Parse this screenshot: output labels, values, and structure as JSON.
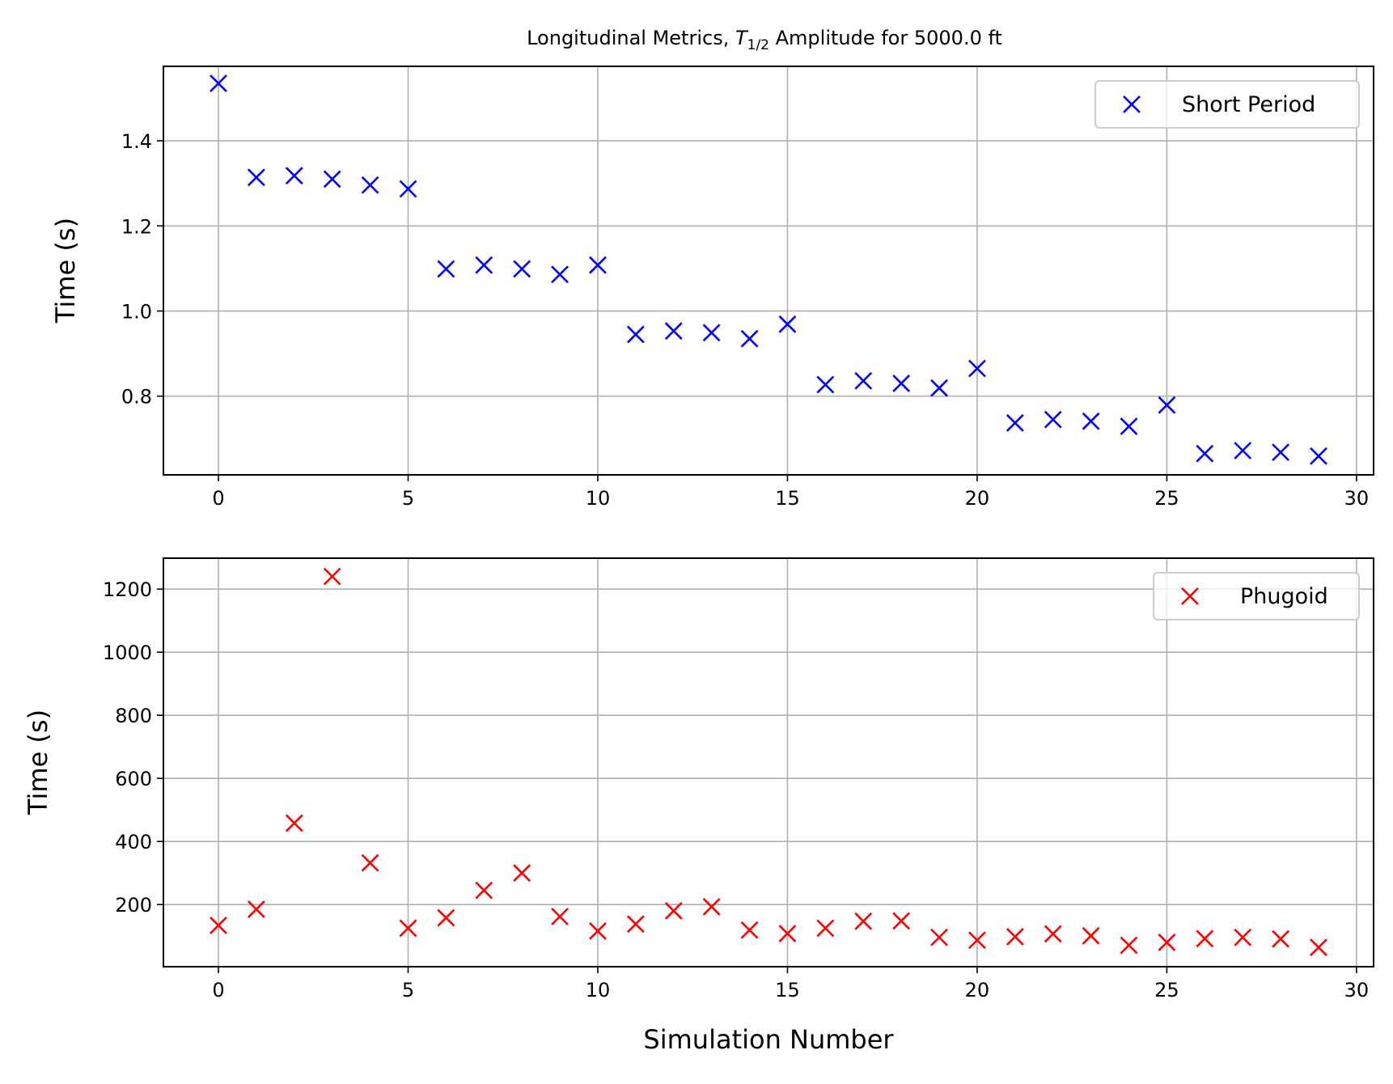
{
  "chart_data": [
    {
      "type": "scatter",
      "title_main": "Longitudinal Metrics, ",
      "title_symbol": "T",
      "title_subscript": "1/2",
      "title_rest": " Amplitude for 5000.0 ft",
      "xlabel": "",
      "ylabel": "Time (s)",
      "xlim": [
        -1.45,
        30.45
      ],
      "ylim": [
        0.615,
        1.575
      ],
      "xticks": [
        0,
        5,
        10,
        15,
        20,
        25,
        30
      ],
      "xtick_labels": [
        "0",
        "5",
        "10",
        "15",
        "20",
        "25",
        "30"
      ],
      "yticks": [
        0.8,
        1.0,
        1.2,
        1.4
      ],
      "ytick_labels": [
        "0.8",
        "1.0",
        "1.2",
        "1.4"
      ],
      "grid": true,
      "legend_position": "upper right",
      "series": [
        {
          "name": "Short Period",
          "marker": "x",
          "color": "#0000ff",
          "x": [
            0,
            1,
            2,
            3,
            4,
            5,
            6,
            7,
            8,
            9,
            10,
            11,
            12,
            13,
            14,
            15,
            16,
            17,
            18,
            19,
            20,
            21,
            22,
            23,
            24,
            25,
            26,
            27,
            28,
            29
          ],
          "y": [
            1.535,
            1.314,
            1.318,
            1.31,
            1.296,
            1.287,
            1.099,
            1.108,
            1.099,
            1.086,
            1.108,
            0.945,
            0.953,
            0.949,
            0.935,
            0.969,
            0.827,
            0.836,
            0.83,
            0.819,
            0.865,
            0.737,
            0.745,
            0.741,
            0.729,
            0.779,
            0.665,
            0.672,
            0.668,
            0.659
          ]
        }
      ]
    },
    {
      "type": "scatter",
      "xlabel": "Simulation Number",
      "ylabel": "Time (s)",
      "xlim": [
        -1.45,
        30.45
      ],
      "ylim": [
        3,
        1298
      ],
      "xticks": [
        0,
        5,
        10,
        15,
        20,
        25,
        30
      ],
      "xtick_labels": [
        "0",
        "5",
        "10",
        "15",
        "20",
        "25",
        "30"
      ],
      "yticks": [
        200,
        400,
        600,
        800,
        1000,
        1200
      ],
      "ytick_labels": [
        "200",
        "400",
        "600",
        "800",
        "1000",
        "1200"
      ],
      "grid": true,
      "legend_position": "upper right",
      "series": [
        {
          "name": "Phugoid",
          "marker": "x",
          "color": "#ff0000",
          "x": [
            0,
            1,
            2,
            3,
            4,
            5,
            6,
            7,
            8,
            9,
            10,
            11,
            12,
            13,
            14,
            15,
            16,
            17,
            18,
            19,
            20,
            21,
            22,
            23,
            24,
            25,
            26,
            27,
            28,
            29
          ],
          "y": [
            134,
            185,
            458,
            1240,
            332,
            125,
            158,
            245,
            300,
            162,
            116,
            138,
            180,
            193,
            119,
            108,
            125,
            147,
            148,
            96,
            87,
            98,
            107,
            101,
            71,
            80,
            92,
            96,
            91,
            64
          ]
        }
      ]
    }
  ]
}
